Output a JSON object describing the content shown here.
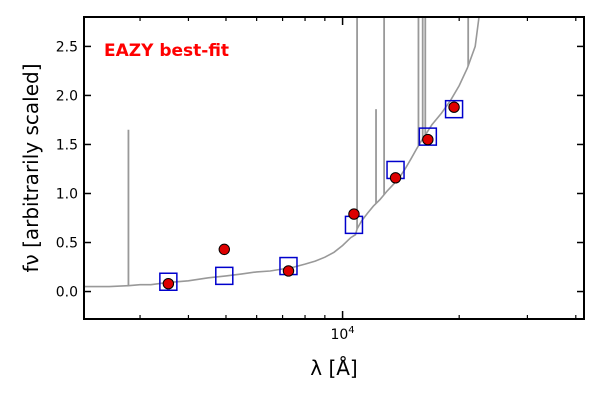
{
  "chart_data": {
    "type": "scatter",
    "xscale": "log",
    "xlim": [
      2150,
      42000
    ],
    "ylim": [
      -0.28,
      2.8
    ],
    "xlabel": "λ [Å]",
    "ylabel": "fν [arbitrarily scaled]",
    "x_ticks": [
      {
        "value": 10000,
        "label": "10^4"
      }
    ],
    "y_ticks": [
      {
        "value": 0.0,
        "label": "0.0"
      },
      {
        "value": 0.5,
        "label": "0.5"
      },
      {
        "value": 1.0,
        "label": "1.0"
      },
      {
        "value": 1.5,
        "label": "1.5"
      },
      {
        "value": 2.0,
        "label": "2.0"
      },
      {
        "value": 2.5,
        "label": "2.5"
      }
    ],
    "annotation": "EAZY best-fit",
    "annotation_color": "#ff0000",
    "series": [
      {
        "kind": "observed",
        "marker": "circle",
        "color": "#dd0000",
        "x": [
          3550,
          4950,
          7250,
          10700,
          13700,
          16600,
          19400
        ],
        "y": [
          0.08,
          0.43,
          0.21,
          0.79,
          1.16,
          1.55,
          1.88
        ]
      },
      {
        "kind": "model",
        "marker": "square",
        "color": "#0000cc",
        "x": [
          3550,
          4950,
          7250,
          10700,
          13700,
          16600,
          19400
        ],
        "y": [
          0.1,
          0.16,
          0.26,
          0.68,
          1.24,
          1.58,
          1.86
        ]
      },
      {
        "kind": "sed",
        "line_color": "#999999",
        "x": [
          2150,
          2500,
          2800,
          3000,
          3200,
          3500,
          4000,
          4500,
          5000,
          5500,
          6000,
          6500,
          7000,
          7500,
          8000,
          8500,
          9000,
          9500,
          10000,
          10500,
          10800,
          10900,
          11200,
          11600,
          12000,
          12500,
          13000,
          13500,
          14000,
          14500,
          15000,
          15500,
          16000,
          16500,
          17000,
          18000,
          19000,
          20000,
          21000,
          22000,
          22500
        ],
        "y": [
          0.05,
          0.05,
          0.06,
          0.07,
          0.07,
          0.09,
          0.11,
          0.14,
          0.16,
          0.18,
          0.2,
          0.21,
          0.23,
          0.25,
          0.28,
          0.31,
          0.35,
          0.4,
          0.47,
          0.55,
          0.58,
          0.64,
          0.72,
          0.8,
          0.87,
          0.94,
          1.02,
          1.09,
          1.16,
          1.25,
          1.35,
          1.45,
          1.54,
          1.62,
          1.7,
          1.82,
          1.95,
          2.1,
          2.28,
          2.5,
          2.8
        ],
        "emission_lines": [
          {
            "x": 2800,
            "y": 1.65
          },
          {
            "x": 10900,
            "y": 2.8
          },
          {
            "x": 12200,
            "y": 1.86
          },
          {
            "x": 12800,
            "y": 2.8
          },
          {
            "x": 15700,
            "y": 2.8
          },
          {
            "x": 16100,
            "y": 2.8
          },
          {
            "x": 16350,
            "y": 2.8
          },
          {
            "x": 21100,
            "y": 2.8
          }
        ]
      }
    ]
  }
}
